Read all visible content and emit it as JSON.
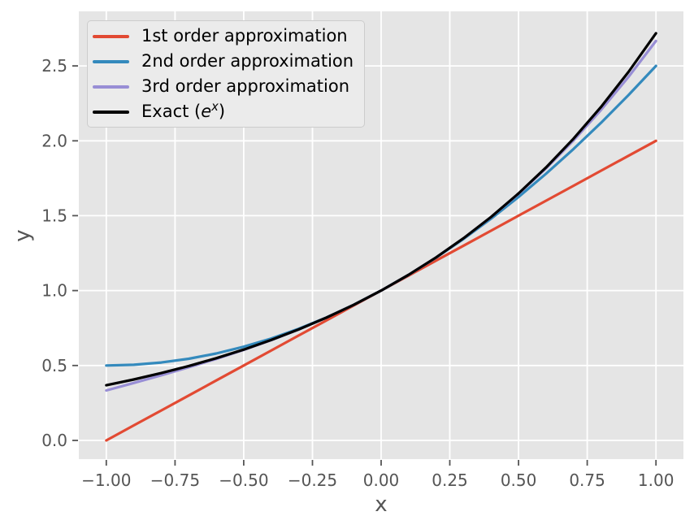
{
  "style": {
    "figure_bg": "#FFFFFF",
    "plot_bg": "#E5E5E5",
    "grid_color": "#FFFFFF",
    "tick_color": "#555555",
    "axis_label_color": "#555555",
    "legend_bg": "#EBEBEB",
    "legend_border": "#CCCCCC",
    "legend_text_color": "#000000"
  },
  "chart_data": {
    "type": "line",
    "title": "",
    "xlabel": "x",
    "ylabel": "y",
    "xlim": [
      -1.1,
      1.1
    ],
    "ylim": [
      -0.125,
      2.864
    ],
    "grid": true,
    "legend_position": "upper left",
    "xticks": {
      "values": [
        -1.0,
        -0.75,
        -0.5,
        -0.25,
        0.0,
        0.25,
        0.5,
        0.75,
        1.0
      ],
      "labels": [
        "−1.00",
        "−0.75",
        "−0.50",
        "−0.25",
        "0.00",
        "0.25",
        "0.50",
        "0.75",
        "1.00"
      ]
    },
    "yticks": {
      "values": [
        0.0,
        0.5,
        1.0,
        1.5,
        2.0,
        2.5
      ],
      "labels": [
        "0.0",
        "0.5",
        "1.0",
        "1.5",
        "2.0",
        "2.5"
      ]
    },
    "x": [
      -1.0,
      -0.9,
      -0.8,
      -0.7,
      -0.6,
      -0.5,
      -0.4,
      -0.3,
      -0.2,
      -0.1,
      0.0,
      0.1,
      0.2,
      0.3,
      0.4,
      0.5,
      0.6,
      0.7,
      0.8,
      0.9,
      1.0
    ],
    "series": [
      {
        "name": "1st order approximation",
        "color": "#E24A33",
        "values": [
          0.0,
          0.1,
          0.2,
          0.3,
          0.4,
          0.5,
          0.6,
          0.7,
          0.8,
          0.9,
          1.0,
          1.1,
          1.2,
          1.3,
          1.4,
          1.5,
          1.6,
          1.7,
          1.8,
          1.9,
          2.0
        ]
      },
      {
        "name": "2nd order approximation",
        "color": "#348ABD",
        "values": [
          0.5,
          0.505,
          0.52,
          0.545,
          0.58,
          0.625,
          0.68,
          0.745,
          0.82,
          0.905,
          1.0,
          1.105,
          1.22,
          1.345,
          1.48,
          1.625,
          1.78,
          1.945,
          2.12,
          2.305,
          2.5
        ]
      },
      {
        "name": "3rd order approximation",
        "color": "#988ED5",
        "values": [
          0.3333,
          0.3835,
          0.4347,
          0.4878,
          0.544,
          0.6042,
          0.6693,
          0.7405,
          0.8187,
          0.9048,
          1.0,
          1.1052,
          1.2213,
          1.3495,
          1.4907,
          1.6458,
          1.816,
          2.0022,
          2.2053,
          2.4265,
          2.6667
        ]
      },
      {
        "name": "Exact (e^x)",
        "color": "#000000",
        "label_parts": {
          "prefix": "Exact (",
          "base": "e",
          "sup": "x",
          "suffix": ")"
        },
        "values": [
          0.3679,
          0.4066,
          0.4493,
          0.4966,
          0.5488,
          0.6065,
          0.6703,
          0.7408,
          0.8187,
          0.9048,
          1.0,
          1.1052,
          1.2214,
          1.3499,
          1.4918,
          1.6487,
          1.8221,
          2.0138,
          2.2255,
          2.4596,
          2.7183
        ]
      }
    ]
  }
}
